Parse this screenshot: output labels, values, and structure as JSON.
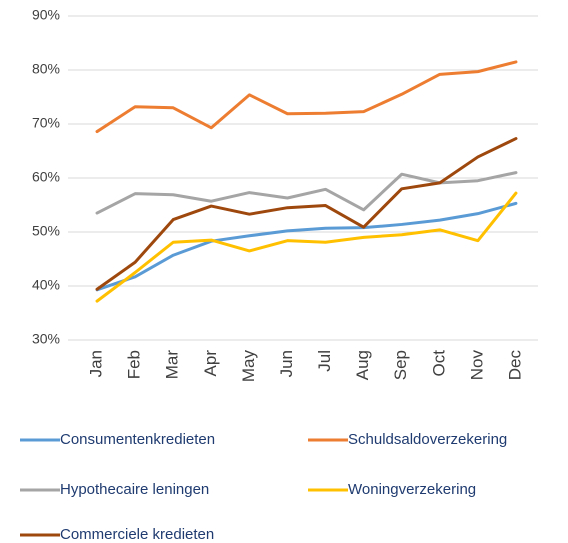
{
  "chart_data": {
    "type": "line",
    "categories": [
      "Jan",
      "Feb",
      "Mar",
      "Apr",
      "May",
      "Jun",
      "Jul",
      "Aug",
      "Sep",
      "Oct",
      "Nov",
      "Dec"
    ],
    "series": [
      {
        "name": "Consumentenkredieten",
        "color": "#5b9bd5",
        "values": [
          39.3,
          41.7,
          45.7,
          48.3,
          49.3,
          50.2,
          50.7,
          50.8,
          51.4,
          52.2,
          53.4,
          55.3
        ]
      },
      {
        "name": "Schuldsaldoverzekering",
        "color": "#ed7d31",
        "values": [
          68.6,
          73.2,
          73.0,
          69.3,
          75.4,
          71.9,
          72.0,
          72.3,
          75.5,
          79.2,
          79.7,
          81.5
        ]
      },
      {
        "name": "Hypothecaire leningen",
        "color": "#a5a5a5",
        "values": [
          53.5,
          57.1,
          56.9,
          55.7,
          57.3,
          56.3,
          57.9,
          54.1,
          60.7,
          59.1,
          59.5,
          61.0
        ]
      },
      {
        "name": "Woningverzekering",
        "color": "#ffc000",
        "values": [
          37.2,
          42.5,
          48.1,
          48.5,
          46.5,
          48.4,
          48.1,
          49.0,
          49.5,
          50.4,
          48.4,
          57.2
        ]
      },
      {
        "name": "Commerciele kredieten",
        "color": "#9e480e",
        "values": [
          39.4,
          44.4,
          52.3,
          54.8,
          53.3,
          54.5,
          54.9,
          50.9,
          58.0,
          59.1,
          63.9,
          67.3
        ]
      }
    ],
    "ylim": [
      30,
      90
    ],
    "yticks": [
      {
        "value": 30,
        "label": "30%"
      },
      {
        "value": 40,
        "label": "40%"
      },
      {
        "value": 50,
        "label": "50%"
      },
      {
        "value": 60,
        "label": "60%"
      },
      {
        "value": 70,
        "label": "70%"
      },
      {
        "value": 80,
        "label": "80%"
      },
      {
        "value": 90,
        "label": "90%"
      }
    ],
    "grid": true,
    "legend": "bottom"
  }
}
